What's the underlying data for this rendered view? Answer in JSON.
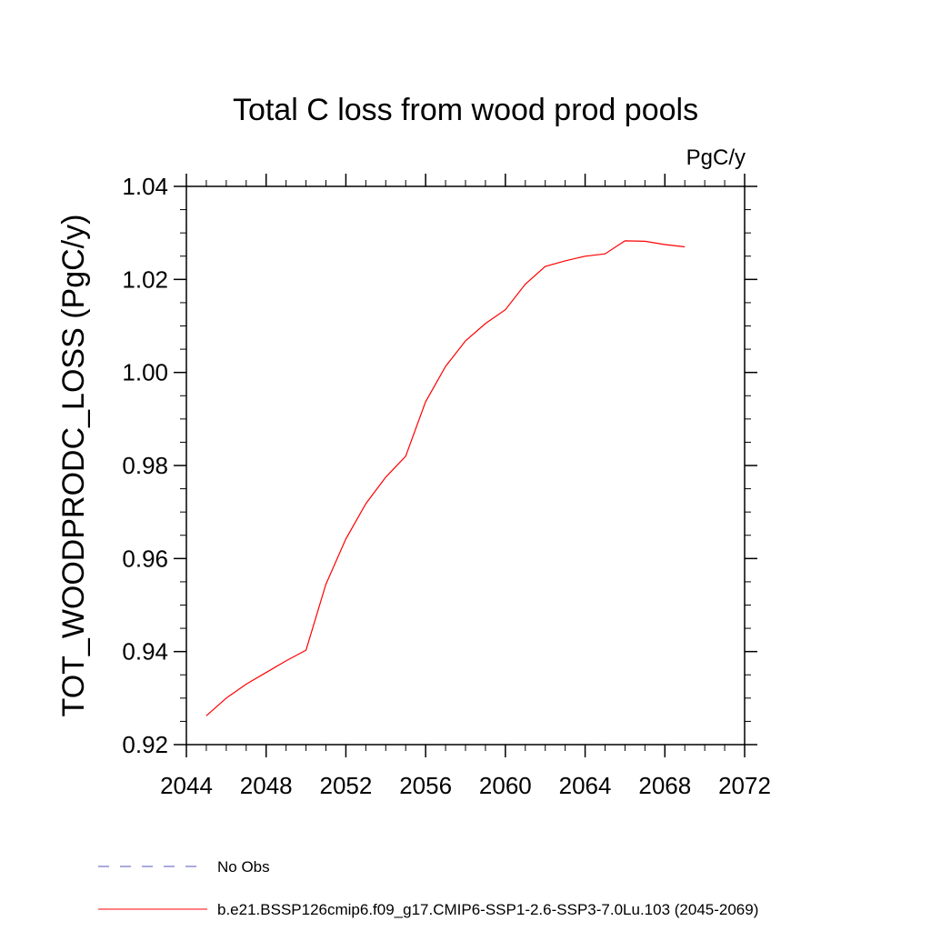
{
  "chart_data": {
    "type": "line",
    "title": "Total C loss from wood prod pools",
    "units_label": "PgC/y",
    "ylabel": "TOT_WOODPRODC_LOSS  (PgC/y)",
    "xlabel": "",
    "xlim": [
      2044,
      2072
    ],
    "ylim": [
      0.92,
      1.04
    ],
    "x_ticks": [
      "2044",
      "2048",
      "2052",
      "2056",
      "2060",
      "2064",
      "2068",
      "2072"
    ],
    "y_ticks": [
      "0.92",
      "0.94",
      "0.96",
      "0.98",
      "1.00",
      "1.02",
      "1.04"
    ],
    "grid": false,
    "legend_placement": "bottom",
    "series": [
      {
        "name": "b.e21.BSSP126cmip6.f09_g17.CMIP6-SSP1-2.6-SSP3-7.0Lu.103 (2045-2069)",
        "color": "#ff0000",
        "style": "solid",
        "x": [
          2045,
          2046,
          2047,
          2048,
          2049,
          2050,
          2051,
          2052,
          2053,
          2054,
          2055,
          2056,
          2057,
          2058,
          2059,
          2060,
          2061,
          2062,
          2063,
          2064,
          2065,
          2066,
          2067,
          2068,
          2069
        ],
        "y": [
          0.9262,
          0.93,
          0.933,
          0.9355,
          0.938,
          0.9403,
          0.9545,
          0.9642,
          0.9718,
          0.9775,
          0.982,
          0.9937,
          1.0013,
          1.0068,
          1.0105,
          1.0135,
          1.019,
          1.0228,
          1.024,
          1.025,
          1.0255,
          1.0283,
          1.0282,
          1.0275,
          1.027
        ]
      }
    ],
    "legend": [
      {
        "label": "No Obs",
        "color": "#5555bb",
        "style": "dashed"
      },
      {
        "label": "b.e21.BSSP126cmip6.f09_g17.CMIP6-SSP1-2.6-SSP3-7.0Lu.103 (2045-2069)",
        "color": "#ff0000",
        "style": "solid"
      }
    ]
  }
}
